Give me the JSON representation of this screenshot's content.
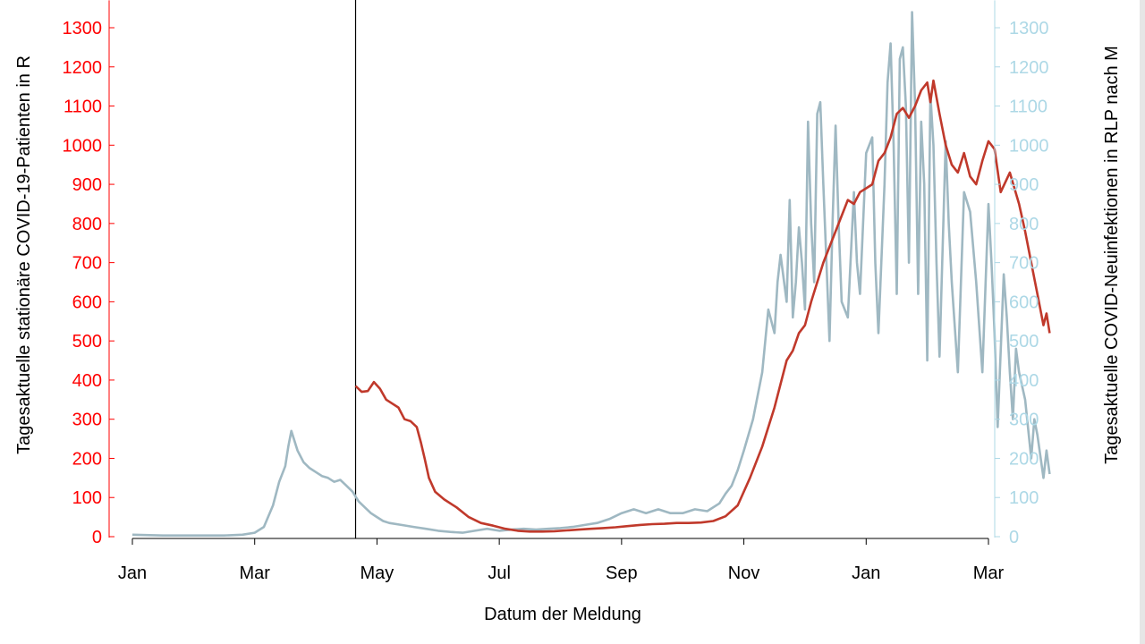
{
  "chart_data": {
    "type": "line",
    "xlabel": "Datum der Meldung",
    "ylabel_left": "Tagesaktuelle stationäre COVID-19-Patienten in R",
    "ylabel_right": "Tagesaktuelle COVID-Neuinfektionen in RLP nach M",
    "x_ticks": [
      "Jan",
      "Mar",
      "May",
      "Jul",
      "Sep",
      "Nov",
      "Jan",
      "Mar"
    ],
    "y_ticks_left": [
      "0",
      "100",
      "200",
      "300",
      "400",
      "500",
      "600",
      "700",
      "800",
      "900",
      "1000",
      "1100",
      "1200",
      "1300"
    ],
    "y_ticks_right": [
      "0",
      "100",
      "200",
      "300",
      "400",
      "500",
      "600",
      "700",
      "800",
      "900",
      "1000",
      "1100",
      "1200",
      "1300"
    ],
    "ylim_left": [
      0,
      1370
    ],
    "ylim_right": [
      0,
      1370
    ],
    "xlim_month": [
      0,
      14.2
    ],
    "vertical_marker_month": 3.65,
    "colors": {
      "left_axis": "#ff0000",
      "right_axis": "#add8e6",
      "hospital": "#c0392b",
      "infections": "#9fb8c2"
    },
    "series": [
      {
        "axis": "left",
        "color": "#c0392b",
        "points": [
          [
            3.65,
            385
          ],
          [
            3.75,
            370
          ],
          [
            3.85,
            372
          ],
          [
            3.95,
            395
          ],
          [
            4.05,
            378
          ],
          [
            4.15,
            350
          ],
          [
            4.25,
            340
          ],
          [
            4.35,
            330
          ],
          [
            4.45,
            300
          ],
          [
            4.55,
            295
          ],
          [
            4.65,
            280
          ],
          [
            4.72,
            240
          ],
          [
            4.78,
            200
          ],
          [
            4.85,
            150
          ],
          [
            4.95,
            115
          ],
          [
            5.1,
            95
          ],
          [
            5.3,
            75
          ],
          [
            5.5,
            50
          ],
          [
            5.7,
            35
          ],
          [
            5.9,
            28
          ],
          [
            6.1,
            20
          ],
          [
            6.3,
            15
          ],
          [
            6.5,
            13
          ],
          [
            6.7,
            13
          ],
          [
            6.9,
            14
          ],
          [
            7.1,
            16
          ],
          [
            7.3,
            18
          ],
          [
            7.5,
            20
          ],
          [
            7.7,
            22
          ],
          [
            7.9,
            24
          ],
          [
            8.1,
            27
          ],
          [
            8.3,
            30
          ],
          [
            8.5,
            32
          ],
          [
            8.7,
            33
          ],
          [
            8.9,
            35
          ],
          [
            9.1,
            35
          ],
          [
            9.3,
            36
          ],
          [
            9.5,
            40
          ],
          [
            9.7,
            52
          ],
          [
            9.9,
            80
          ],
          [
            10.1,
            150
          ],
          [
            10.3,
            230
          ],
          [
            10.5,
            330
          ],
          [
            10.7,
            450
          ],
          [
            10.8,
            475
          ],
          [
            10.9,
            520
          ],
          [
            11.0,
            540
          ],
          [
            11.1,
            600
          ],
          [
            11.3,
            700
          ],
          [
            11.5,
            780
          ],
          [
            11.7,
            860
          ],
          [
            11.8,
            850
          ],
          [
            11.9,
            880
          ],
          [
            12.0,
            890
          ],
          [
            12.1,
            900
          ],
          [
            12.2,
            960
          ],
          [
            12.3,
            980
          ],
          [
            12.4,
            1020
          ],
          [
            12.5,
            1080
          ],
          [
            12.6,
            1095
          ],
          [
            12.7,
            1070
          ],
          [
            12.8,
            1100
          ],
          [
            12.9,
            1140
          ],
          [
            13.0,
            1160
          ],
          [
            13.05,
            1110
          ],
          [
            13.1,
            1165
          ],
          [
            13.2,
            1080
          ],
          [
            13.3,
            1000
          ],
          [
            13.4,
            950
          ],
          [
            13.5,
            930
          ],
          [
            13.6,
            980
          ],
          [
            13.7,
            920
          ],
          [
            13.8,
            900
          ],
          [
            13.9,
            960
          ],
          [
            14.0,
            1010
          ],
          [
            14.1,
            990
          ],
          [
            14.2,
            880
          ],
          [
            14.35,
            930
          ],
          [
            14.5,
            850
          ],
          [
            14.6,
            780
          ],
          [
            14.7,
            700
          ],
          [
            14.8,
            620
          ],
          [
            14.9,
            540
          ],
          [
            14.95,
            570
          ],
          [
            15.0,
            520
          ]
        ]
      },
      {
        "axis": "right",
        "color": "#9fb8c2",
        "points": [
          [
            0.0,
            5
          ],
          [
            0.5,
            3
          ],
          [
            1.0,
            3
          ],
          [
            1.5,
            3
          ],
          [
            1.8,
            5
          ],
          [
            2.0,
            10
          ],
          [
            2.15,
            25
          ],
          [
            2.3,
            80
          ],
          [
            2.4,
            140
          ],
          [
            2.5,
            180
          ],
          [
            2.55,
            230
          ],
          [
            2.6,
            270
          ],
          [
            2.7,
            220
          ],
          [
            2.8,
            190
          ],
          [
            2.9,
            175
          ],
          [
            3.0,
            165
          ],
          [
            3.1,
            155
          ],
          [
            3.2,
            150
          ],
          [
            3.3,
            140
          ],
          [
            3.4,
            145
          ],
          [
            3.5,
            130
          ],
          [
            3.6,
            115
          ],
          [
            3.7,
            90
          ],
          [
            3.8,
            75
          ],
          [
            3.9,
            60
          ],
          [
            4.0,
            50
          ],
          [
            4.1,
            40
          ],
          [
            4.2,
            35
          ],
          [
            4.4,
            30
          ],
          [
            4.6,
            25
          ],
          [
            4.8,
            20
          ],
          [
            5.0,
            15
          ],
          [
            5.2,
            12
          ],
          [
            5.4,
            10
          ],
          [
            5.6,
            15
          ],
          [
            5.8,
            20
          ],
          [
            6.0,
            15
          ],
          [
            6.2,
            18
          ],
          [
            6.4,
            20
          ],
          [
            6.6,
            18
          ],
          [
            6.8,
            20
          ],
          [
            7.0,
            22
          ],
          [
            7.2,
            25
          ],
          [
            7.4,
            30
          ],
          [
            7.6,
            35
          ],
          [
            7.8,
            45
          ],
          [
            8.0,
            60
          ],
          [
            8.2,
            70
          ],
          [
            8.4,
            60
          ],
          [
            8.6,
            70
          ],
          [
            8.8,
            60
          ],
          [
            9.0,
            60
          ],
          [
            9.2,
            70
          ],
          [
            9.4,
            65
          ],
          [
            9.6,
            85
          ],
          [
            9.7,
            110
          ],
          [
            9.8,
            130
          ],
          [
            9.9,
            170
          ],
          [
            10.0,
            220
          ],
          [
            10.15,
            300
          ],
          [
            10.3,
            420
          ],
          [
            10.4,
            580
          ],
          [
            10.5,
            520
          ],
          [
            10.55,
            650
          ],
          [
            10.6,
            720
          ],
          [
            10.7,
            600
          ],
          [
            10.75,
            860
          ],
          [
            10.8,
            560
          ],
          [
            10.85,
            650
          ],
          [
            10.9,
            790
          ],
          [
            10.95,
            700
          ],
          [
            11.0,
            580
          ],
          [
            11.05,
            1060
          ],
          [
            11.1,
            800
          ],
          [
            11.15,
            650
          ],
          [
            11.2,
            1080
          ],
          [
            11.25,
            1110
          ],
          [
            11.3,
            900
          ],
          [
            11.35,
            700
          ],
          [
            11.4,
            500
          ],
          [
            11.45,
            800
          ],
          [
            11.5,
            1050
          ],
          [
            11.55,
            800
          ],
          [
            11.6,
            600
          ],
          [
            11.7,
            560
          ],
          [
            11.8,
            880
          ],
          [
            11.85,
            700
          ],
          [
            11.9,
            620
          ],
          [
            12.0,
            980
          ],
          [
            12.1,
            1020
          ],
          [
            12.15,
            700
          ],
          [
            12.2,
            520
          ],
          [
            12.3,
            900
          ],
          [
            12.35,
            1160
          ],
          [
            12.4,
            1260
          ],
          [
            12.45,
            1000
          ],
          [
            12.5,
            620
          ],
          [
            12.55,
            1220
          ],
          [
            12.6,
            1250
          ],
          [
            12.65,
            1100
          ],
          [
            12.7,
            700
          ],
          [
            12.75,
            1340
          ],
          [
            12.8,
            1100
          ],
          [
            12.85,
            620
          ],
          [
            12.9,
            1060
          ],
          [
            12.95,
            900
          ],
          [
            13.0,
            450
          ],
          [
            13.05,
            1130
          ],
          [
            13.1,
            1000
          ],
          [
            13.15,
            700
          ],
          [
            13.2,
            460
          ],
          [
            13.3,
            1010
          ],
          [
            13.35,
            800
          ],
          [
            13.4,
            650
          ],
          [
            13.5,
            420
          ],
          [
            13.6,
            880
          ],
          [
            13.7,
            830
          ],
          [
            13.8,
            650
          ],
          [
            13.9,
            420
          ],
          [
            14.0,
            850
          ],
          [
            14.05,
            700
          ],
          [
            14.1,
            520
          ],
          [
            14.15,
            280
          ],
          [
            14.25,
            670
          ],
          [
            14.3,
            560
          ],
          [
            14.35,
            420
          ],
          [
            14.4,
            300
          ],
          [
            14.45,
            480
          ],
          [
            14.5,
            420
          ],
          [
            14.6,
            350
          ],
          [
            14.7,
            200
          ],
          [
            14.75,
            300
          ],
          [
            14.8,
            260
          ],
          [
            14.9,
            150
          ],
          [
            14.95,
            220
          ],
          [
            15.0,
            160
          ]
        ]
      }
    ]
  }
}
